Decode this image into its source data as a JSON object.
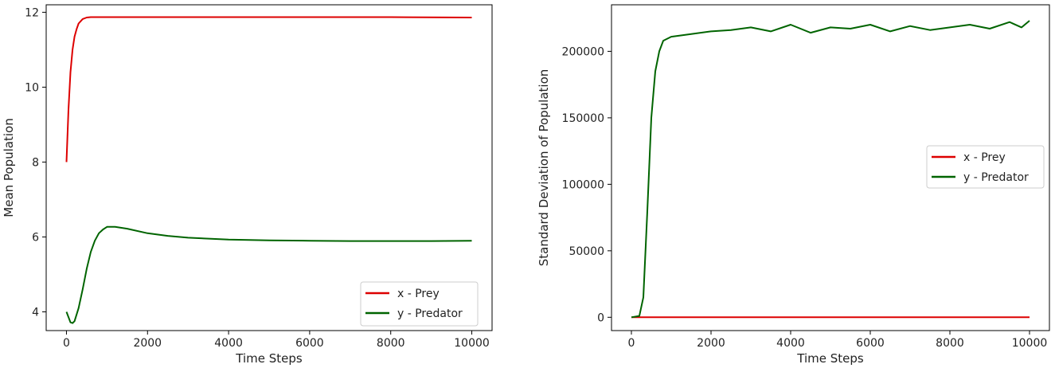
{
  "chart_data": [
    {
      "type": "line",
      "xlabel": "Time Steps",
      "ylabel": "Mean Population",
      "xlim": [
        -500,
        10500
      ],
      "ylim": [
        3.5,
        12.2
      ],
      "xticks": [
        0,
        2000,
        4000,
        6000,
        8000,
        10000
      ],
      "yticks": [
        4,
        6,
        8,
        10,
        12
      ],
      "grid": false,
      "legend": "lower-right",
      "series": [
        {
          "name": "x - Prey",
          "color": "#dd0000",
          "x": [
            0,
            50,
            100,
            150,
            200,
            250,
            300,
            400,
            500,
            600,
            800,
            1000,
            2000,
            4000,
            6000,
            8000,
            10000
          ],
          "y": [
            8.0,
            9.4,
            10.4,
            11.0,
            11.35,
            11.55,
            11.7,
            11.82,
            11.86,
            11.87,
            11.87,
            11.87,
            11.87,
            11.87,
            11.87,
            11.87,
            11.86
          ]
        },
        {
          "name": "y - Predator",
          "color": "#006400",
          "x": [
            0,
            100,
            150,
            200,
            300,
            400,
            500,
            600,
            700,
            800,
            900,
            1000,
            1200,
            1500,
            2000,
            2500,
            3000,
            4000,
            5000,
            6000,
            7000,
            8000,
            9000,
            10000
          ],
          "y": [
            4.0,
            3.72,
            3.7,
            3.75,
            4.1,
            4.6,
            5.15,
            5.6,
            5.9,
            6.1,
            6.2,
            6.27,
            6.27,
            6.22,
            6.1,
            6.03,
            5.98,
            5.93,
            5.91,
            5.9,
            5.89,
            5.89,
            5.89,
            5.9
          ]
        }
      ]
    },
    {
      "type": "line",
      "xlabel": "Time Steps",
      "ylabel": "Standard Deviation of Population",
      "xlim": [
        -500,
        10500
      ],
      "ylim": [
        -10000,
        235000
      ],
      "xticks": [
        0,
        2000,
        4000,
        6000,
        8000,
        10000
      ],
      "yticks": [
        0,
        50000,
        100000,
        150000,
        200000
      ],
      "grid": false,
      "legend": "center-right",
      "series": [
        {
          "name": "x - Prey",
          "color": "#dd0000",
          "x": [
            0,
            10000
          ],
          "y": [
            0,
            0
          ]
        },
        {
          "name": "y - Predator",
          "color": "#006400",
          "x": [
            0,
            200,
            300,
            400,
            500,
            600,
            700,
            800,
            1000,
            1500,
            2000,
            2500,
            3000,
            3500,
            4000,
            4500,
            5000,
            5500,
            6000,
            6500,
            7000,
            7500,
            8000,
            8500,
            9000,
            9500,
            9800,
            10000
          ],
          "y": [
            0,
            1000,
            15000,
            80000,
            150000,
            185000,
            200000,
            208000,
            211000,
            213000,
            215000,
            216000,
            218000,
            215000,
            220000,
            214000,
            218000,
            217000,
            220000,
            215000,
            219000,
            216000,
            218000,
            220000,
            217000,
            222000,
            218000,
            223000
          ]
        }
      ]
    }
  ]
}
